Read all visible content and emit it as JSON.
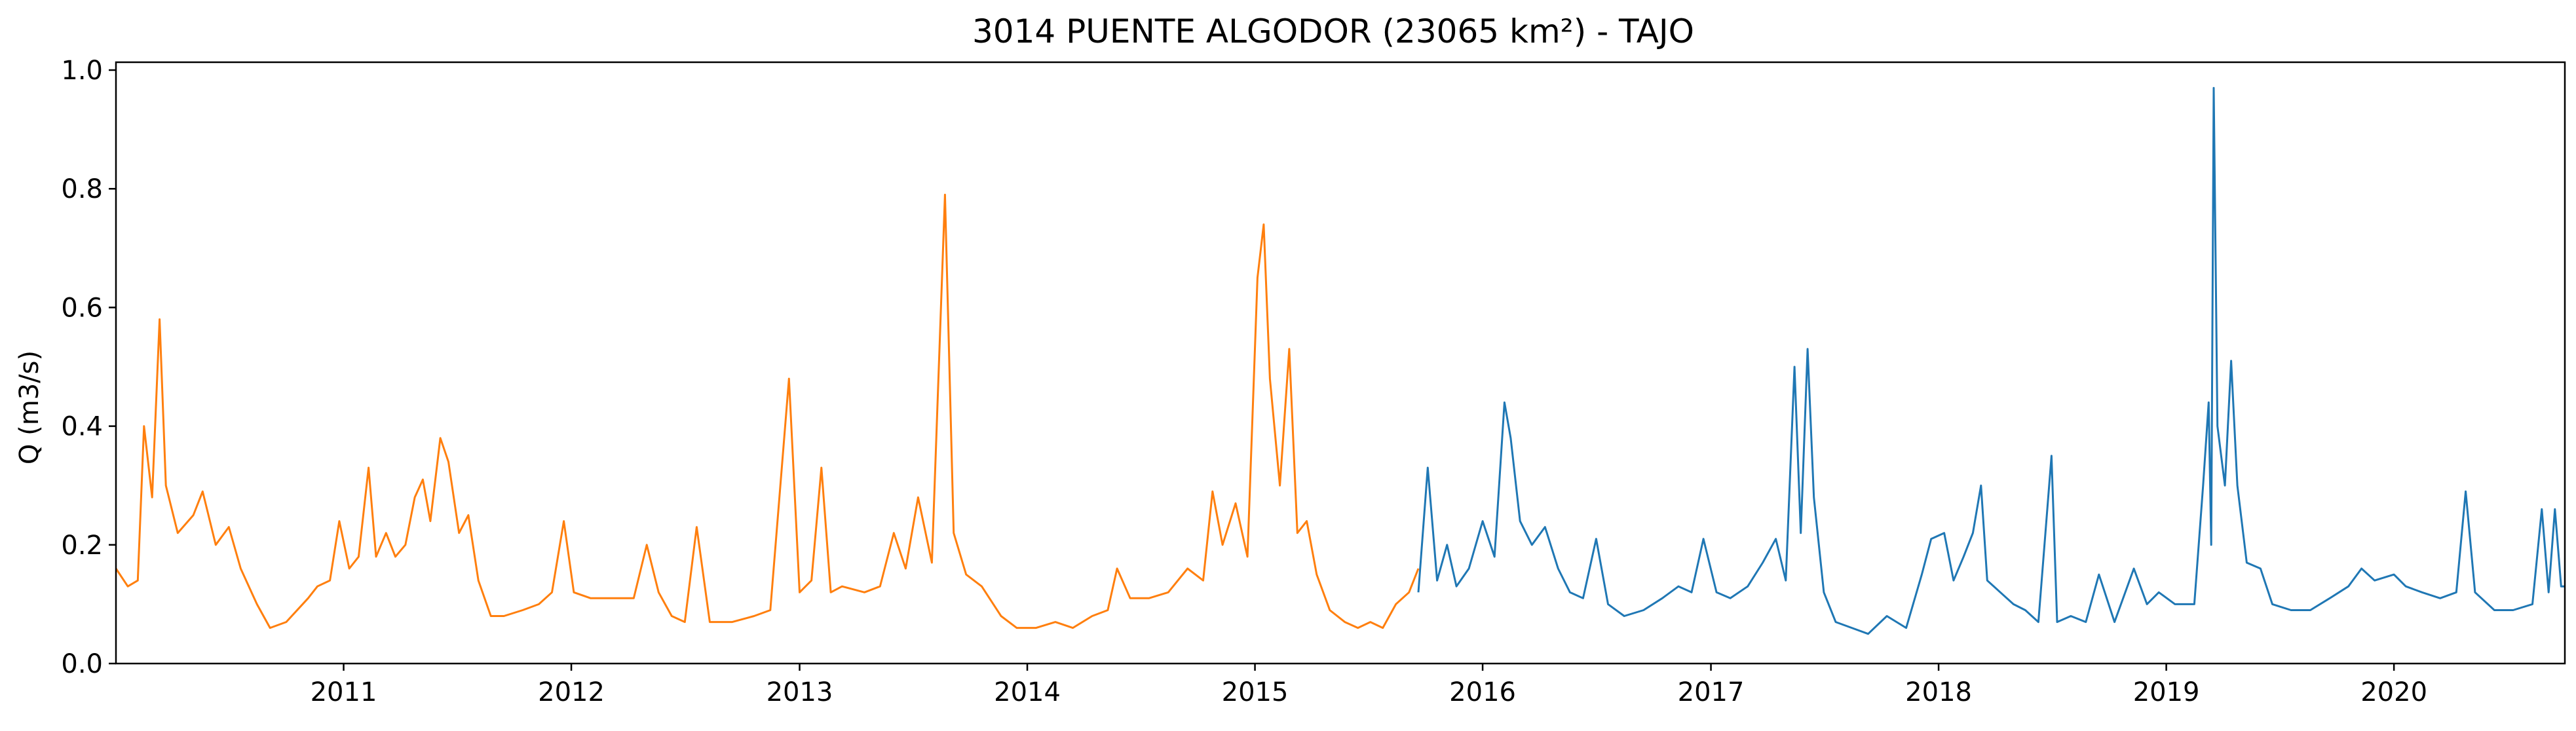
{
  "chart_data": {
    "type": "line",
    "title": "3014 PUENTE ALGODOR (23065 km²) - TAJO",
    "xlabel": "",
    "ylabel": "Q (m3/s)",
    "x_axis": {
      "type": "date",
      "range": [
        "2010-01-01",
        "2020-10-01"
      ],
      "ticks": [
        "2011",
        "2012",
        "2013",
        "2014",
        "2015",
        "2016",
        "2017",
        "2018",
        "2019",
        "2020"
      ]
    },
    "y_axis": {
      "range": [
        0.0,
        1.0
      ],
      "ticks": [
        "0.0",
        "0.2",
        "0.4",
        "0.6",
        "0.8",
        "1.0"
      ]
    },
    "grid": false,
    "legend": "none",
    "series": [
      {
        "color": "#ff7f0e",
        "points": [
          [
            "2010-01-01",
            0.16
          ],
          [
            "2010-01-20",
            0.13
          ],
          [
            "2010-02-05",
            0.14
          ],
          [
            "2010-02-15",
            0.4
          ],
          [
            "2010-02-28",
            0.28
          ],
          [
            "2010-03-12",
            0.58
          ],
          [
            "2010-03-22",
            0.3
          ],
          [
            "2010-04-10",
            0.22
          ],
          [
            "2010-05-05",
            0.25
          ],
          [
            "2010-05-20",
            0.29
          ],
          [
            "2010-06-10",
            0.2
          ],
          [
            "2010-07-01",
            0.23
          ],
          [
            "2010-07-20",
            0.16
          ],
          [
            "2010-08-15",
            0.1
          ],
          [
            "2010-09-05",
            0.06
          ],
          [
            "2010-10-01",
            0.07
          ],
          [
            "2010-11-05",
            0.11
          ],
          [
            "2010-11-20",
            0.13
          ],
          [
            "2010-12-10",
            0.14
          ],
          [
            "2010-12-25",
            0.24
          ],
          [
            "2011-01-10",
            0.16
          ],
          [
            "2011-01-25",
            0.18
          ],
          [
            "2011-02-10",
            0.33
          ],
          [
            "2011-02-22",
            0.18
          ],
          [
            "2011-03-10",
            0.22
          ],
          [
            "2011-03-25",
            0.18
          ],
          [
            "2011-04-10",
            0.2
          ],
          [
            "2011-04-25",
            0.28
          ],
          [
            "2011-05-08",
            0.31
          ],
          [
            "2011-05-20",
            0.24
          ],
          [
            "2011-06-05",
            0.38
          ],
          [
            "2011-06-18",
            0.34
          ],
          [
            "2011-07-05",
            0.22
          ],
          [
            "2011-07-20",
            0.25
          ],
          [
            "2011-08-05",
            0.14
          ],
          [
            "2011-08-25",
            0.08
          ],
          [
            "2011-09-15",
            0.08
          ],
          [
            "2011-10-15",
            0.09
          ],
          [
            "2011-11-10",
            0.1
          ],
          [
            "2011-12-01",
            0.12
          ],
          [
            "2011-12-20",
            0.24
          ],
          [
            "2012-01-05",
            0.12
          ],
          [
            "2012-02-01",
            0.11
          ],
          [
            "2012-03-01",
            0.11
          ],
          [
            "2012-04-10",
            0.11
          ],
          [
            "2012-05-01",
            0.2
          ],
          [
            "2012-05-20",
            0.12
          ],
          [
            "2012-06-10",
            0.08
          ],
          [
            "2012-07-01",
            0.07
          ],
          [
            "2012-07-20",
            0.23
          ],
          [
            "2012-08-10",
            0.07
          ],
          [
            "2012-09-15",
            0.07
          ],
          [
            "2012-10-20",
            0.08
          ],
          [
            "2012-11-15",
            0.09
          ],
          [
            "2012-12-15",
            0.48
          ],
          [
            "2013-01-01",
            0.12
          ],
          [
            "2013-01-20",
            0.14
          ],
          [
            "2013-02-05",
            0.33
          ],
          [
            "2013-02-20",
            0.12
          ],
          [
            "2013-03-10",
            0.13
          ],
          [
            "2013-04-15",
            0.12
          ],
          [
            "2013-05-10",
            0.13
          ],
          [
            "2013-06-01",
            0.22
          ],
          [
            "2013-06-20",
            0.16
          ],
          [
            "2013-07-10",
            0.28
          ],
          [
            "2013-08-01",
            0.17
          ],
          [
            "2013-08-22",
            0.79
          ],
          [
            "2013-09-05",
            0.22
          ],
          [
            "2013-09-25",
            0.15
          ],
          [
            "2013-10-20",
            0.13
          ],
          [
            "2013-11-20",
            0.08
          ],
          [
            "2013-12-15",
            0.06
          ],
          [
            "2014-01-15",
            0.06
          ],
          [
            "2014-02-15",
            0.07
          ],
          [
            "2014-03-15",
            0.06
          ],
          [
            "2014-04-15",
            0.08
          ],
          [
            "2014-05-10",
            0.09
          ],
          [
            "2014-05-25",
            0.16
          ],
          [
            "2014-06-15",
            0.11
          ],
          [
            "2014-07-15",
            0.11
          ],
          [
            "2014-08-15",
            0.12
          ],
          [
            "2014-09-15",
            0.16
          ],
          [
            "2014-10-10",
            0.14
          ],
          [
            "2014-10-25",
            0.29
          ],
          [
            "2014-11-10",
            0.2
          ],
          [
            "2014-12-01",
            0.27
          ],
          [
            "2014-12-20",
            0.18
          ],
          [
            "2015-01-05",
            0.65
          ],
          [
            "2015-01-15",
            0.74
          ],
          [
            "2015-01-25",
            0.48
          ],
          [
            "2015-02-10",
            0.3
          ],
          [
            "2015-02-25",
            0.53
          ],
          [
            "2015-03-10",
            0.22
          ],
          [
            "2015-03-25",
            0.24
          ],
          [
            "2015-04-10",
            0.15
          ],
          [
            "2015-05-01",
            0.09
          ],
          [
            "2015-05-25",
            0.07
          ],
          [
            "2015-06-15",
            0.06
          ],
          [
            "2015-07-05",
            0.07
          ],
          [
            "2015-07-25",
            0.06
          ],
          [
            "2015-08-15",
            0.1
          ],
          [
            "2015-09-05",
            0.12
          ],
          [
            "2015-09-20",
            0.16
          ]
        ]
      },
      {
        "color": "#1f77b4",
        "points": [
          [
            "2015-09-20",
            0.12
          ],
          [
            "2015-10-05",
            0.33
          ],
          [
            "2015-10-20",
            0.14
          ],
          [
            "2015-11-05",
            0.2
          ],
          [
            "2015-11-20",
            0.13
          ],
          [
            "2015-12-10",
            0.16
          ],
          [
            "2016-01-01",
            0.24
          ],
          [
            "2016-01-20",
            0.18
          ],
          [
            "2016-02-05",
            0.44
          ],
          [
            "2016-02-15",
            0.38
          ],
          [
            "2016-03-01",
            0.24
          ],
          [
            "2016-03-20",
            0.2
          ],
          [
            "2016-04-10",
            0.23
          ],
          [
            "2016-05-01",
            0.16
          ],
          [
            "2016-05-20",
            0.12
          ],
          [
            "2016-06-10",
            0.11
          ],
          [
            "2016-07-01",
            0.21
          ],
          [
            "2016-07-20",
            0.1
          ],
          [
            "2016-08-15",
            0.08
          ],
          [
            "2016-09-15",
            0.09
          ],
          [
            "2016-10-15",
            0.11
          ],
          [
            "2016-11-10",
            0.13
          ],
          [
            "2016-12-01",
            0.12
          ],
          [
            "2016-12-20",
            0.21
          ],
          [
            "2017-01-10",
            0.12
          ],
          [
            "2017-02-01",
            0.11
          ],
          [
            "2017-03-01",
            0.13
          ],
          [
            "2017-03-25",
            0.17
          ],
          [
            "2017-04-15",
            0.21
          ],
          [
            "2017-05-01",
            0.14
          ],
          [
            "2017-05-15",
            0.5
          ],
          [
            "2017-05-25",
            0.22
          ],
          [
            "2017-06-05",
            0.53
          ],
          [
            "2017-06-15",
            0.28
          ],
          [
            "2017-07-01",
            0.12
          ],
          [
            "2017-07-20",
            0.07
          ],
          [
            "2017-08-15",
            0.06
          ],
          [
            "2017-09-10",
            0.05
          ],
          [
            "2017-10-10",
            0.08
          ],
          [
            "2017-11-10",
            0.06
          ],
          [
            "2017-12-05",
            0.15
          ],
          [
            "2017-12-20",
            0.21
          ],
          [
            "2018-01-10",
            0.22
          ],
          [
            "2018-01-25",
            0.14
          ],
          [
            "2018-02-10",
            0.18
          ],
          [
            "2018-02-25",
            0.22
          ],
          [
            "2018-03-10",
            0.3
          ],
          [
            "2018-03-20",
            0.14
          ],
          [
            "2018-04-10",
            0.12
          ],
          [
            "2018-05-01",
            0.1
          ],
          [
            "2018-05-20",
            0.09
          ],
          [
            "2018-06-10",
            0.07
          ],
          [
            "2018-07-01",
            0.35
          ],
          [
            "2018-07-10",
            0.07
          ],
          [
            "2018-08-01",
            0.08
          ],
          [
            "2018-08-25",
            0.07
          ],
          [
            "2018-09-15",
            0.15
          ],
          [
            "2018-10-10",
            0.07
          ],
          [
            "2018-11-10",
            0.16
          ],
          [
            "2018-12-01",
            0.1
          ],
          [
            "2018-12-20",
            0.12
          ],
          [
            "2019-01-15",
            0.1
          ],
          [
            "2019-02-15",
            0.1
          ],
          [
            "2019-03-01",
            0.3
          ],
          [
            "2019-03-10",
            0.44
          ],
          [
            "2019-03-14",
            0.2
          ],
          [
            "2019-03-18",
            0.97
          ],
          [
            "2019-03-24",
            0.4
          ],
          [
            "2019-04-05",
            0.3
          ],
          [
            "2019-04-15",
            0.51
          ],
          [
            "2019-04-25",
            0.3
          ],
          [
            "2019-05-10",
            0.17
          ],
          [
            "2019-06-01",
            0.16
          ],
          [
            "2019-06-20",
            0.1
          ],
          [
            "2019-07-20",
            0.09
          ],
          [
            "2019-08-20",
            0.09
          ],
          [
            "2019-09-20",
            0.11
          ],
          [
            "2019-10-20",
            0.13
          ],
          [
            "2019-11-10",
            0.16
          ],
          [
            "2019-12-01",
            0.14
          ],
          [
            "2020-01-01",
            0.15
          ],
          [
            "2020-01-20",
            0.13
          ],
          [
            "2020-02-15",
            0.12
          ],
          [
            "2020-03-15",
            0.11
          ],
          [
            "2020-04-10",
            0.12
          ],
          [
            "2020-04-25",
            0.29
          ],
          [
            "2020-05-10",
            0.12
          ],
          [
            "2020-06-10",
            0.09
          ],
          [
            "2020-07-10",
            0.09
          ],
          [
            "2020-08-10",
            0.1
          ],
          [
            "2020-08-25",
            0.26
          ],
          [
            "2020-09-05",
            0.12
          ],
          [
            "2020-09-15",
            0.26
          ],
          [
            "2020-09-25",
            0.13
          ],
          [
            "2020-10-01",
            0.13
          ]
        ]
      }
    ]
  }
}
